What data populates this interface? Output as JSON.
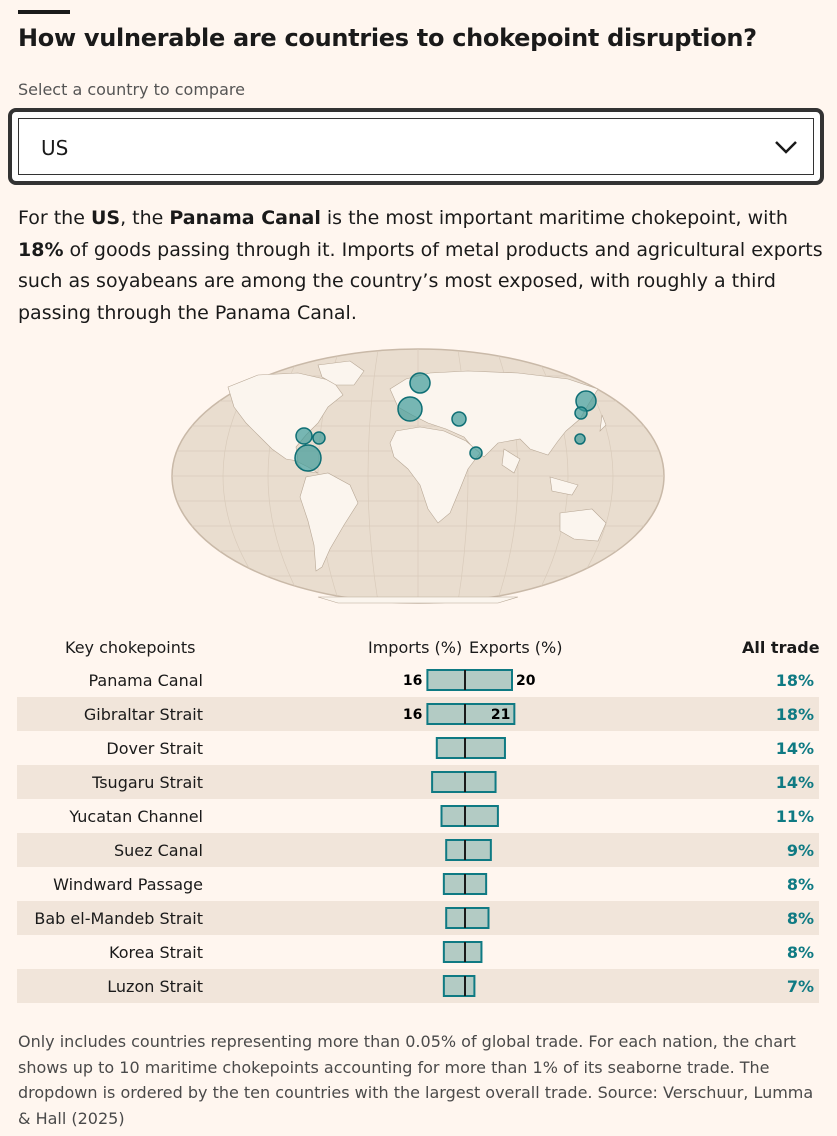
{
  "title": "How vulnerable are countries to chokepoint disruption?",
  "select": {
    "label": "Select a country to compare",
    "value": "US"
  },
  "description": {
    "p1": "For the ",
    "country": "US",
    "p2": ", the ",
    "chokepoint": "Panama Canal",
    "p3": " is the most important maritime chokepoint, with ",
    "share": "18%",
    "p4": " of goods passing through it. Imports of metal products and agricultural exports such as soyabeans are among the country’s most exposed, with roughly a third passing through the Panama Canal."
  },
  "table_headers": {
    "name": "Key chokepoints",
    "imports": "Imports (%)",
    "exports": "Exports (%)",
    "all": "All trade"
  },
  "colors": {
    "bar_fill": "#b3cbc4",
    "bar_stroke": "#0f7a83",
    "accent": "#0f7a83",
    "alt_row": "#f1e5da",
    "background": "#fff6ef"
  },
  "chart_data": {
    "type": "bar",
    "categories": [
      "Panama Canal",
      "Gibraltar Strait",
      "Dover Strait",
      "Tsugaru Strait",
      "Yucatan Channel",
      "Suez Canal",
      "Windward Passage",
      "Bab el-Mandeb Strait",
      "Korea Strait",
      "Luzon Strait"
    ],
    "series": [
      {
        "name": "Imports (%)",
        "values": [
          16,
          16,
          12,
          14,
          10,
          8,
          9,
          8,
          9,
          9
        ]
      },
      {
        "name": "Exports (%)",
        "values": [
          20,
          21,
          17,
          13,
          14,
          11,
          9,
          10,
          7,
          4
        ]
      }
    ],
    "all_trade": [
      "18%",
      "18%",
      "14%",
      "14%",
      "11%",
      "9%",
      "8%",
      "8%",
      "8%",
      "7%"
    ],
    "labeled_rows": 2
  },
  "footer": "Only includes countries representing more than 0.05% of global trade. For each nation, the chart shows up to 10 maritime chokepoints accounting for more than 1% of its seaborne trade. The dropdown is ordered by the ten countries with the largest overall trade. Source: Verschuur, Lumma & Hall (2025)"
}
